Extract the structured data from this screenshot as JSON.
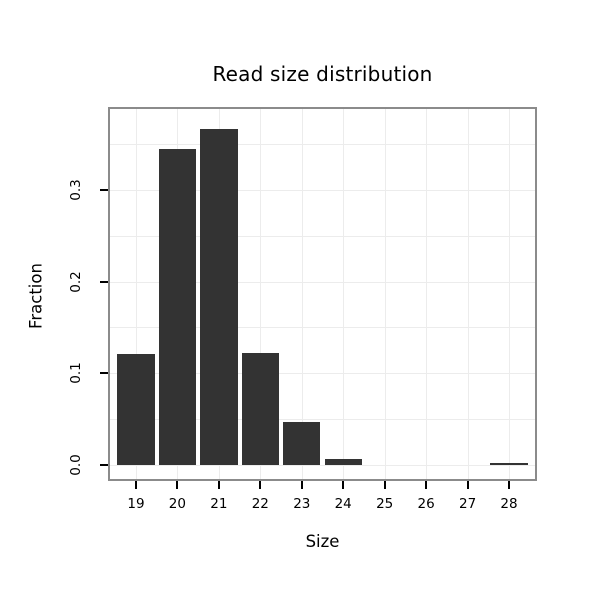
{
  "title": "Read size distribution",
  "chart_data": {
    "type": "bar",
    "title": "Read size distribution",
    "xlabel": "Size",
    "ylabel": "Fraction",
    "categories": [
      "19",
      "20",
      "21",
      "22",
      "23",
      "24",
      "25",
      "26",
      "27",
      "28"
    ],
    "values": [
      0.121,
      0.345,
      0.366,
      0.122,
      0.047,
      0.007,
      0,
      0,
      0,
      0.002
    ],
    "yticks": [
      0,
      0.1,
      0.2,
      0.3
    ],
    "ytick_labels": [
      "0.0",
      "0.1",
      "0.2",
      "0.3"
    ],
    "ylim": [
      0,
      0.375
    ],
    "grid": true,
    "grid_minor_step": 0.05,
    "legend": "none",
    "bar_color": "#333333",
    "panel_border_color": "#8b8b8b",
    "grid_color": "#ececec",
    "text_color": "#000000"
  }
}
